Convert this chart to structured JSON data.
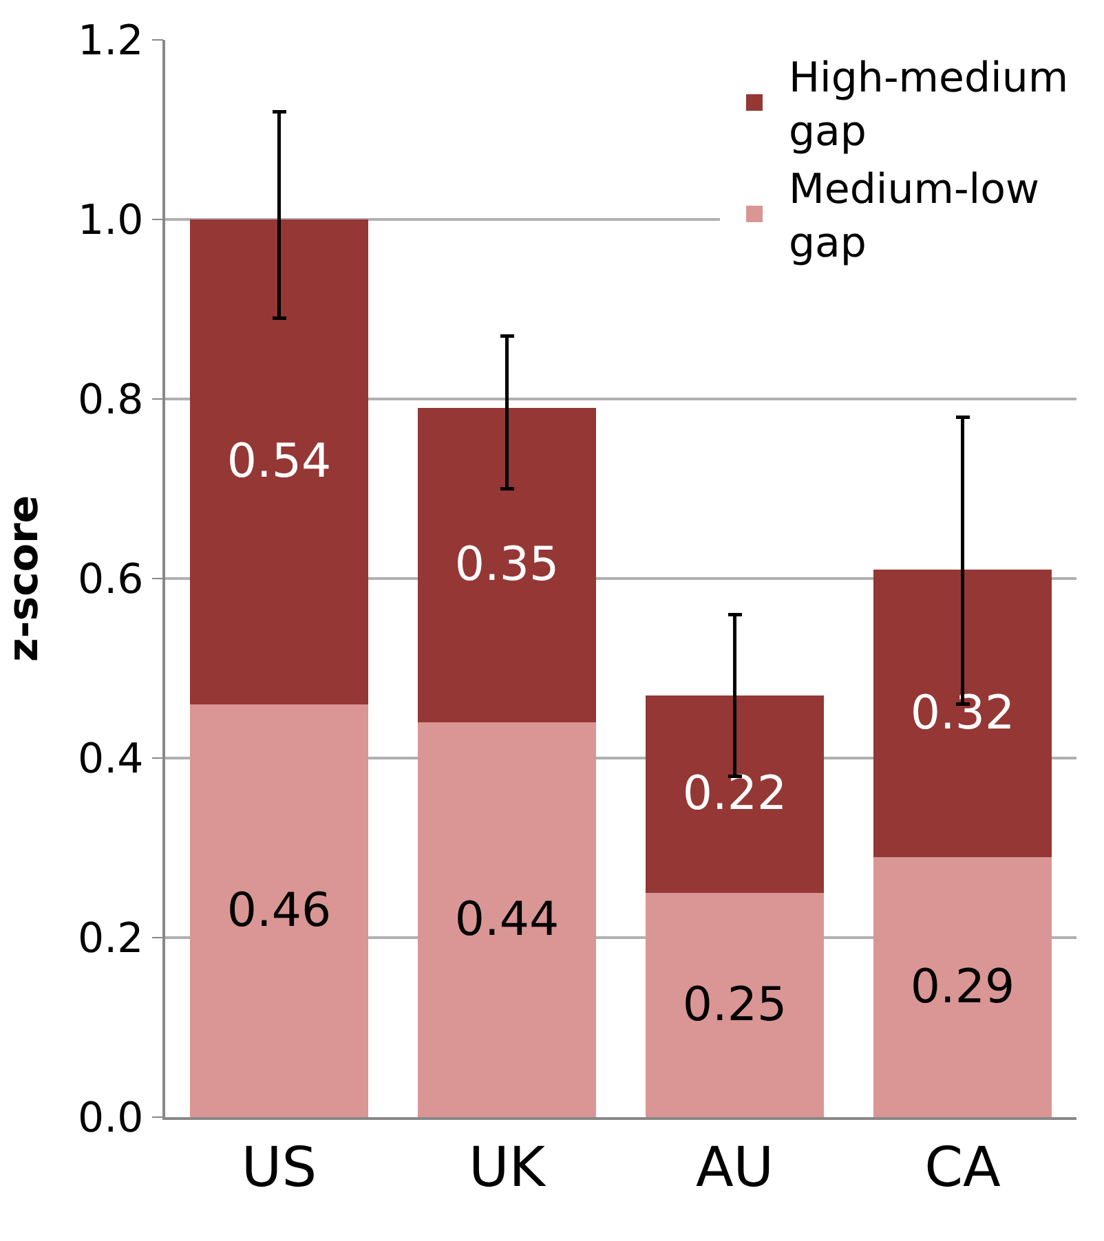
{
  "chart_data": {
    "type": "bar",
    "stacked": true,
    "ylabel": "z-score",
    "categories": [
      "US",
      "UK",
      "AU",
      "CA"
    ],
    "series": [
      {
        "name": "Medium-low gap",
        "color": "#da9694",
        "values": [
          0.46,
          0.44,
          0.25,
          0.29
        ]
      },
      {
        "name": "High-medium gap",
        "color": "#953735",
        "values": [
          0.54,
          0.35,
          0.22,
          0.32
        ],
        "errors": [
          [
            0.89,
            1.12
          ],
          [
            0.7,
            0.87
          ],
          [
            0.38,
            0.56
          ],
          [
            0.46,
            0.78
          ]
        ]
      }
    ],
    "ylim": [
      0,
      1.2
    ],
    "yticks": [
      {
        "value": 0,
        "label": "0.0"
      },
      {
        "value": 0.2,
        "label": "0.2"
      },
      {
        "value": 0.4,
        "label": "0.4"
      },
      {
        "value": 0.6,
        "label": "0.6"
      },
      {
        "value": 0.8,
        "label": "0.8"
      },
      {
        "value": 1.0,
        "label": "1.0"
      },
      {
        "value": 1.2,
        "label": "1.2"
      }
    ],
    "grid": "y",
    "legend": "top right",
    "data_labels": true
  }
}
